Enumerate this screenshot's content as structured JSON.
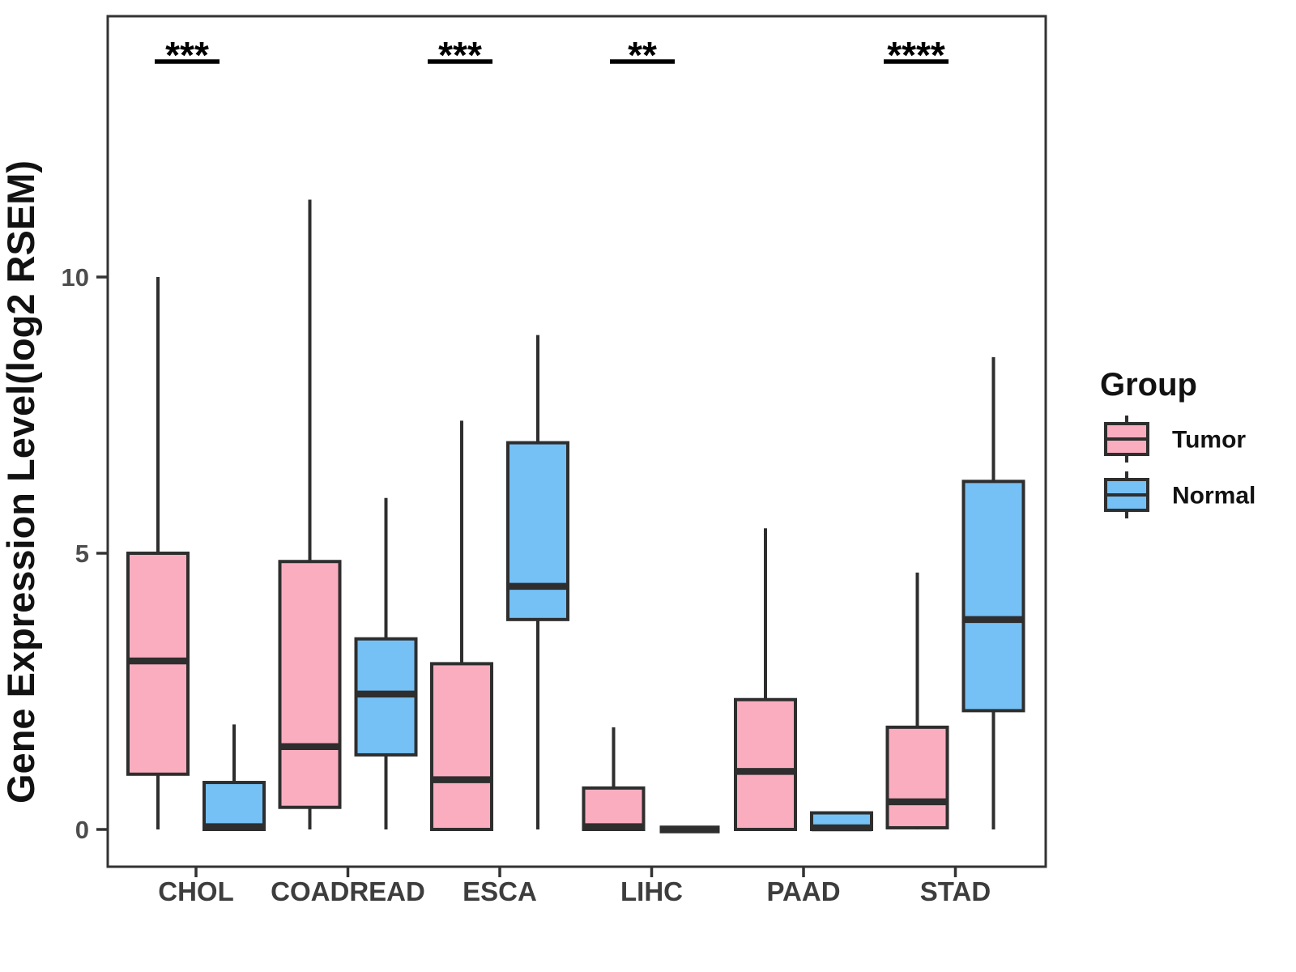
{
  "chart_data": {
    "type": "boxplot",
    "title": "",
    "xlabel": "",
    "ylabel": "Gene Expression Level(log2 RSEM)",
    "yticks": [
      0,
      5,
      10
    ],
    "ylim": [
      -0.67,
      14.7
    ],
    "grid": false,
    "categories": [
      "CHOL",
      "COADREAD",
      "ESCA",
      "LIHC",
      "PAAD",
      "STAD"
    ],
    "groups": [
      "Tumor",
      "Normal"
    ],
    "colors": {
      "tumor_fill": "#FBADC0",
      "normal_fill": "#75C0F4",
      "box_stroke": "#2E2E2E",
      "panel_border": "#333333",
      "tick_text": "#4d4d4d",
      "annotation": "#000000"
    },
    "legend": {
      "title": "Group",
      "position": "right",
      "entries": [
        {
          "label": "Tumor",
          "group": "Tumor"
        },
        {
          "label": "Normal",
          "group": "Normal"
        }
      ]
    },
    "significance": [
      {
        "category": "CHOL",
        "label": "***"
      },
      {
        "category": "ESCA",
        "label": "***"
      },
      {
        "category": "LIHC",
        "label": "**"
      },
      {
        "category": "STAD",
        "label": "****"
      }
    ],
    "boxes": [
      {
        "category": "CHOL",
        "group": "Tumor",
        "low": 0,
        "q1": 1.0,
        "median": 3.05,
        "q3": 5.0,
        "high": 10.0
      },
      {
        "category": "CHOL",
        "group": "Normal",
        "low": 0,
        "q1": 0.0,
        "median": 0.05,
        "q3": 0.85,
        "high": 1.9
      },
      {
        "category": "COADREAD",
        "group": "Tumor",
        "low": 0,
        "q1": 0.4,
        "median": 1.5,
        "q3": 4.85,
        "high": 11.4
      },
      {
        "category": "COADREAD",
        "group": "Normal",
        "low": 0,
        "q1": 1.35,
        "median": 2.45,
        "q3": 3.45,
        "high": 6.0
      },
      {
        "category": "ESCA",
        "group": "Tumor",
        "low": 0,
        "q1": 0.0,
        "median": 0.9,
        "q3": 3.0,
        "high": 7.4
      },
      {
        "category": "ESCA",
        "group": "Normal",
        "low": 0,
        "q1": 3.8,
        "median": 4.4,
        "q3": 7.0,
        "high": 8.95
      },
      {
        "category": "LIHC",
        "group": "Tumor",
        "low": 0,
        "q1": 0.0,
        "median": 0.05,
        "q3": 0.75,
        "high": 1.85
      },
      {
        "category": "LIHC",
        "group": "Normal",
        "low": 0,
        "q1": 0.0,
        "median": 0.0,
        "q3": 0.0,
        "high": 0.0
      },
      {
        "category": "PAAD",
        "group": "Tumor",
        "low": 0,
        "q1": 0.0,
        "median": 1.05,
        "q3": 2.35,
        "high": 5.45
      },
      {
        "category": "PAAD",
        "group": "Normal",
        "low": 0,
        "q1": 0.0,
        "median": 0.03,
        "q3": 0.3,
        "high": 0.3
      },
      {
        "category": "STAD",
        "group": "Tumor",
        "low": 0,
        "q1": 0.03,
        "median": 0.5,
        "q3": 1.85,
        "high": 4.65
      },
      {
        "category": "STAD",
        "group": "Normal",
        "low": 0,
        "q1": 2.15,
        "median": 3.8,
        "q3": 6.3,
        "high": 8.55
      }
    ]
  }
}
